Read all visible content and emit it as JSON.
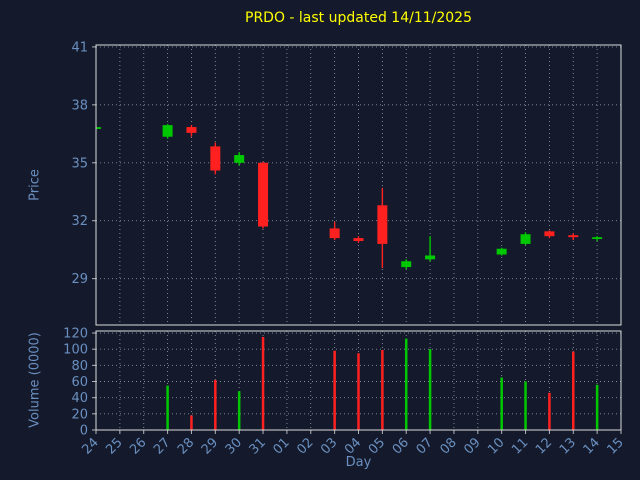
{
  "chart_data": {
    "type": "candlestick",
    "title": "PRDO - last updated 14/11/2025",
    "xlabel": "Day",
    "ylabel_price": "Price",
    "ylabel_volume": "Volume (0000)",
    "grid_style": "dotted",
    "legend": null,
    "categories": [
      "24",
      "25",
      "26",
      "27",
      "28",
      "29",
      "30",
      "31",
      "01",
      "02",
      "03",
      "04",
      "05",
      "06",
      "07",
      "08",
      "09",
      "10",
      "11",
      "12",
      "13",
      "14",
      "15"
    ],
    "price_yticks": [
      29,
      32,
      35,
      38,
      41
    ],
    "price_ylim": [
      26.6,
      41.1
    ],
    "volume_yticks": [
      0,
      20,
      40,
      60,
      80,
      100,
      120
    ],
    "volume_ylim": [
      0,
      122.5
    ],
    "colors": {
      "background": "#141a2b",
      "title": "#ffff00",
      "axis_text": "#6a8fc0",
      "spine": "#dcdcdc",
      "grid": "#c8d2dc",
      "up": "#00c800",
      "down": "#ff2020"
    },
    "ohlc": [
      {
        "day": "24",
        "open": 36.8,
        "high": 36.85,
        "low": 36.75,
        "close": 36.8,
        "volume": 0
      },
      {
        "day": "25",
        "open": null,
        "high": null,
        "low": null,
        "close": null,
        "volume": null
      },
      {
        "day": "26",
        "open": null,
        "high": null,
        "low": null,
        "close": null,
        "volume": null
      },
      {
        "day": "27",
        "open": 36.35,
        "high": 37.0,
        "low": 36.25,
        "close": 36.95,
        "volume": 55
      },
      {
        "day": "28",
        "open": 36.85,
        "high": 36.95,
        "low": 36.35,
        "close": 36.55,
        "volume": 18
      },
      {
        "day": "29",
        "open": 35.85,
        "high": 36.05,
        "low": 34.4,
        "close": 34.6,
        "volume": 62
      },
      {
        "day": "30",
        "open": 35.0,
        "high": 35.55,
        "low": 34.85,
        "close": 35.4,
        "volume": 48
      },
      {
        "day": "31",
        "open": 35.0,
        "high": 35.05,
        "low": 31.6,
        "close": 31.7,
        "volume": 115
      },
      {
        "day": "01",
        "open": null,
        "high": null,
        "low": null,
        "close": null,
        "volume": null
      },
      {
        "day": "02",
        "open": null,
        "high": null,
        "low": null,
        "close": null,
        "volume": null
      },
      {
        "day": "03",
        "open": 31.6,
        "high": 31.95,
        "low": 31.0,
        "close": 31.1,
        "volume": 98
      },
      {
        "day": "04",
        "open": 31.1,
        "high": 31.2,
        "low": 30.85,
        "close": 30.95,
        "volume": 95
      },
      {
        "day": "05",
        "open": 32.8,
        "high": 33.7,
        "low": 29.55,
        "close": 30.8,
        "volume": 99
      },
      {
        "day": "06",
        "open": 29.6,
        "high": 30.0,
        "low": 29.5,
        "close": 29.9,
        "volume": 113
      },
      {
        "day": "07",
        "open": 30.0,
        "high": 31.2,
        "low": 29.9,
        "close": 30.2,
        "volume": 100
      },
      {
        "day": "08",
        "open": null,
        "high": null,
        "low": null,
        "close": null,
        "volume": null
      },
      {
        "day": "09",
        "open": null,
        "high": null,
        "low": null,
        "close": null,
        "volume": null
      },
      {
        "day": "10",
        "open": 30.25,
        "high": 30.6,
        "low": 30.2,
        "close": 30.55,
        "volume": 65
      },
      {
        "day": "11",
        "open": 30.8,
        "high": 31.4,
        "low": 30.75,
        "close": 31.3,
        "volume": 60
      },
      {
        "day": "12",
        "open": 31.45,
        "high": 31.5,
        "low": 31.1,
        "close": 31.2,
        "volume": 46
      },
      {
        "day": "13",
        "open": 31.25,
        "high": 31.35,
        "low": 31.0,
        "close": 31.15,
        "volume": 97
      },
      {
        "day": "14",
        "open": 31.05,
        "high": 31.2,
        "low": 30.95,
        "close": 31.1,
        "volume": 56
      },
      {
        "day": "15",
        "open": null,
        "high": null,
        "low": null,
        "close": null,
        "volume": null
      }
    ]
  }
}
